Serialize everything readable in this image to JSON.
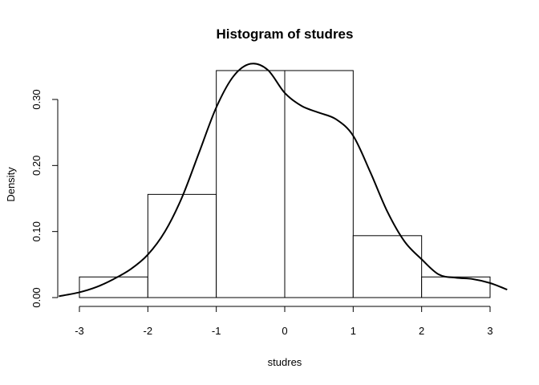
{
  "chart_data": {
    "type": "bar",
    "title": "Histogram of studres",
    "xlabel": "studres",
    "ylabel": "Density",
    "bins": [
      {
        "from": -3,
        "to": -2,
        "value": 0.03125
      },
      {
        "from": -2,
        "to": -1,
        "value": 0.15625
      },
      {
        "from": -1,
        "to": 0,
        "value": 0.34375
      },
      {
        "from": 0,
        "to": 1,
        "value": 0.34375
      },
      {
        "from": 1,
        "to": 2,
        "value": 0.09375
      },
      {
        "from": 2,
        "to": 3,
        "value": 0.03125
      }
    ],
    "density_curve": {
      "x": [
        -3.3,
        -3.0,
        -2.75,
        -2.5,
        -2.25,
        -2.0,
        -1.75,
        -1.5,
        -1.25,
        -1.0,
        -0.75,
        -0.5,
        -0.25,
        0.0,
        0.25,
        0.5,
        0.75,
        1.0,
        1.25,
        1.5,
        1.75,
        2.0,
        2.25,
        2.5,
        2.75,
        3.0,
        3.25
      ],
      "y": [
        0.002,
        0.008,
        0.016,
        0.028,
        0.043,
        0.065,
        0.1,
        0.152,
        0.22,
        0.288,
        0.335,
        0.354,
        0.345,
        0.31,
        0.29,
        0.28,
        0.27,
        0.245,
        0.19,
        0.13,
        0.085,
        0.058,
        0.035,
        0.03,
        0.028,
        0.022,
        0.012
      ]
    },
    "xticks": [
      -3,
      -2,
      -1,
      0,
      1,
      2,
      3
    ],
    "yticks": [
      0.0,
      0.1,
      0.2,
      0.3
    ],
    "xtick_labels": [
      "-3",
      "-2",
      "-1",
      "0",
      "1",
      "2",
      "3"
    ],
    "ytick_labels": [
      "0.00",
      "0.10",
      "0.20",
      "0.30"
    ],
    "xlim": [
      -3.3,
      3.3
    ],
    "ylim": [
      0,
      0.35
    ],
    "grid": false,
    "legend": "none"
  }
}
